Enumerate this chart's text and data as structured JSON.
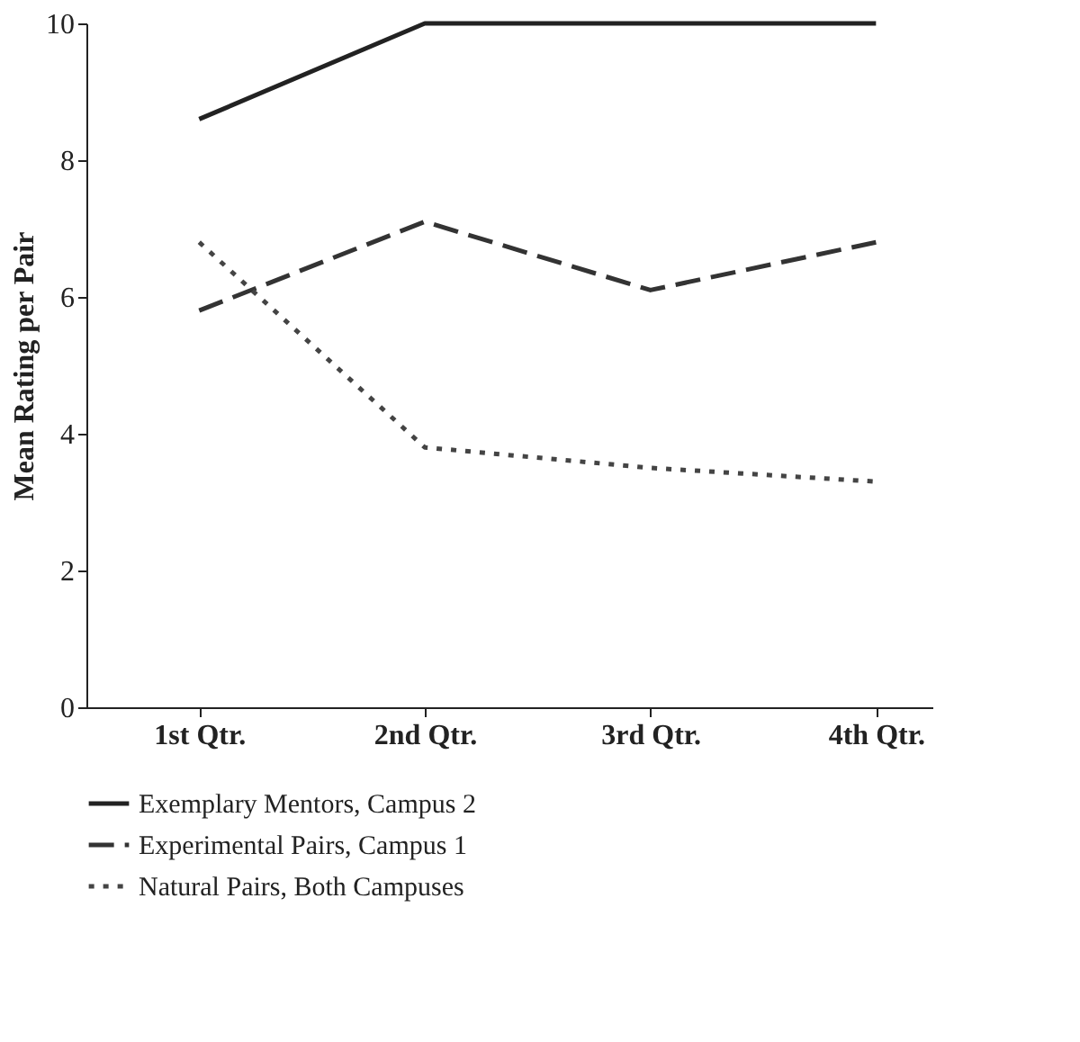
{
  "chart_data": {
    "type": "line",
    "ylabel": "Mean Rating per Pair",
    "categories": [
      "1st Qtr.",
      "2nd Qtr.",
      "3rd Qtr.",
      "4th Qtr."
    ],
    "series": [
      {
        "name": "Exemplary Mentors, Campus 2",
        "color": "#222222",
        "line_style": "solid",
        "values": [
          8.6,
          10,
          10,
          10
        ]
      },
      {
        "name": "Experimental Pairs, Campus 1",
        "color": "#333333",
        "line_style": "dashed",
        "values": [
          5.8,
          7.1,
          6.1,
          6.8
        ]
      },
      {
        "name": "Natural Pairs, Both Campuses",
        "color": "#444444",
        "line_style": "dotted",
        "values": [
          6.8,
          3.8,
          3.5,
          3.3
        ]
      }
    ],
    "ylim": [
      0,
      10
    ],
    "yticks": [
      0,
      2,
      4,
      6,
      8,
      10
    ],
    "grid": false,
    "legend": "bottom",
    "marker": "none"
  }
}
